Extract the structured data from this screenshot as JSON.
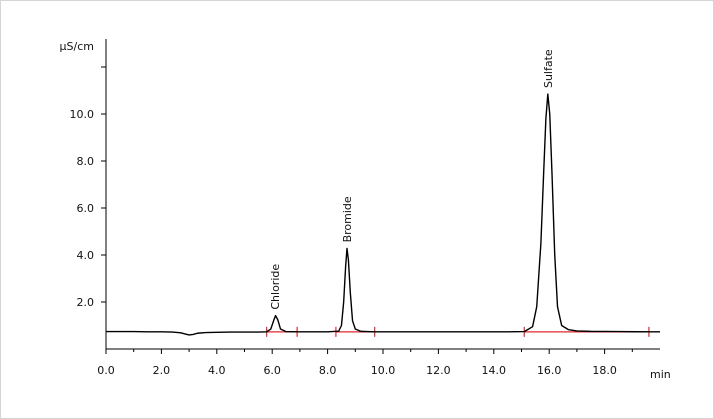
{
  "chart_data": {
    "type": "line",
    "title": "",
    "ylabel": "µS/cm",
    "xlabel": "min",
    "xlim": [
      0.0,
      20.0
    ],
    "ylim": [
      0.0,
      12.0
    ],
    "x_ticks": [
      "0.0",
      "2.0",
      "4.0",
      "6.0",
      "8.0",
      "10.0",
      "12.0",
      "14.0",
      "16.0",
      "18.0"
    ],
    "y_ticks": [
      "2.0",
      "4.0",
      "6.0",
      "8.0",
      "10.0"
    ],
    "grid": false,
    "baseline": 0.73,
    "peaks": [
      {
        "label": "Chloride",
        "retention_time": 6.1,
        "height": 1.42,
        "integration_start": 5.8,
        "integration_end": 6.9
      },
      {
        "label": "Bromide",
        "retention_time": 8.7,
        "height": 4.28,
        "integration_start": 8.3,
        "integration_end": 9.7
      },
      {
        "label": "Sulfate",
        "retention_time": 15.95,
        "height": 10.85,
        "integration_start": 15.1,
        "integration_end": 19.6
      }
    ],
    "series": [
      {
        "color": "#000000",
        "x": [
          0.0,
          0.5,
          1.0,
          1.5,
          2.0,
          2.4,
          2.7,
          2.85,
          3.0,
          3.15,
          3.3,
          3.6,
          4.0,
          4.5,
          5.0,
          5.5,
          5.8,
          5.95,
          6.05,
          6.12,
          6.2,
          6.3,
          6.5,
          6.9,
          7.5,
          8.0,
          8.4,
          8.5,
          8.58,
          8.65,
          8.7,
          8.75,
          8.82,
          8.9,
          9.0,
          9.2,
          9.7,
          10.5,
          12.0,
          13.5,
          14.5,
          15.1,
          15.4,
          15.55,
          15.7,
          15.8,
          15.88,
          15.95,
          16.02,
          16.1,
          16.2,
          16.3,
          16.45,
          16.7,
          17.0,
          17.5,
          18.5,
          19.6,
          20.0
        ],
        "y": [
          0.74,
          0.74,
          0.74,
          0.73,
          0.73,
          0.72,
          0.69,
          0.64,
          0.6,
          0.62,
          0.67,
          0.7,
          0.71,
          0.72,
          0.72,
          0.72,
          0.73,
          0.85,
          1.2,
          1.42,
          1.25,
          0.85,
          0.74,
          0.73,
          0.73,
          0.73,
          0.76,
          1.0,
          2.0,
          3.5,
          4.28,
          3.8,
          2.4,
          1.2,
          0.85,
          0.75,
          0.73,
          0.73,
          0.73,
          0.73,
          0.73,
          0.74,
          0.95,
          1.8,
          4.5,
          7.5,
          9.8,
          10.85,
          10.0,
          7.5,
          4.0,
          1.8,
          1.0,
          0.82,
          0.77,
          0.75,
          0.74,
          0.73,
          0.73
        ]
      }
    ],
    "integration_color": "#e0292f"
  }
}
